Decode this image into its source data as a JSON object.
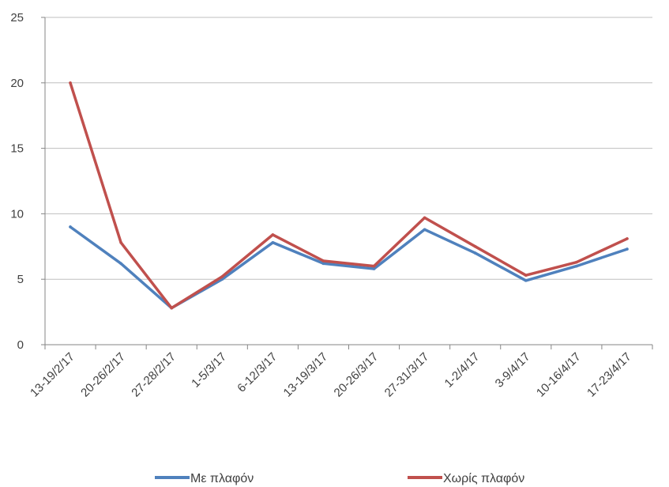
{
  "chart_data": {
    "type": "line",
    "categories": [
      "13-19/2/17",
      "20-26/2/17",
      "27-28/2/17",
      "1-5/3/17",
      "6-12/3/17",
      "13-19/3/17",
      "20-26/3/17",
      "27-31/3/17",
      "1-2/4/17",
      "3-9/4/17",
      "10-16/4/17",
      "17-23/4/17"
    ],
    "series": [
      {
        "name": "Με πλαφόν",
        "color": "#4F81BD",
        "values": [
          9.0,
          6.2,
          2.8,
          5.0,
          7.8,
          6.2,
          5.8,
          8.8,
          7.0,
          4.9,
          6.0,
          7.3
        ]
      },
      {
        "name": "Χωρίς πλαφόν",
        "color": "#C0504D",
        "values": [
          20.0,
          7.8,
          2.8,
          5.2,
          8.4,
          6.4,
          6.0,
          9.7,
          7.5,
          5.3,
          6.3,
          8.1
        ]
      }
    ],
    "yticks": [
      "0",
      "5",
      "10",
      "15",
      "20",
      "25"
    ],
    "ylim": [
      0,
      25
    ],
    "grid": true,
    "gridline_color": "#BFBFBF",
    "axis_color": "#868686",
    "legend_position": "bottom"
  }
}
